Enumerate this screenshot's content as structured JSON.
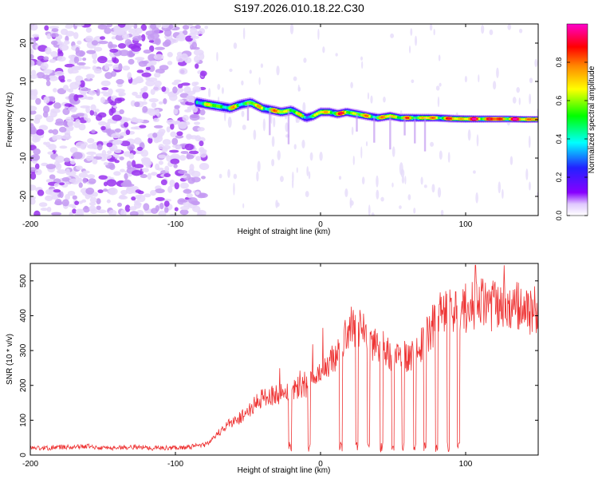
{
  "title": "S197.2026.010.18.22.C30",
  "chart_data": [
    {
      "type": "heatmap",
      "xlabel": "Height of straight line (km)",
      "ylabel": "Frequency (Hz)",
      "xlim": [
        -200,
        150
      ],
      "ylim": [
        -25,
        25
      ],
      "xticks": [
        -200,
        -100,
        0,
        100
      ],
      "yticks": [
        -20,
        -10,
        0,
        10,
        20
      ],
      "noise_region": [
        -200,
        -80
      ],
      "signal_track": {
        "x": [
          -85,
          -78,
          -70,
          -62,
          -55,
          -48,
          -40,
          -33,
          -27,
          -20,
          -15,
          -10,
          -5,
          0,
          6,
          12,
          18,
          25,
          32,
          40,
          48,
          55,
          62,
          70,
          80,
          90,
          100,
          110,
          120,
          130,
          140,
          150
        ],
        "freq": [
          4.5,
          4,
          3.5,
          3,
          4,
          4.5,
          3,
          2.5,
          2,
          2.5,
          1.5,
          0.5,
          1,
          2,
          2,
          1.5,
          2,
          1.5,
          1,
          0.5,
          1,
          0.5,
          0.5,
          0.5,
          0.5,
          0.3,
          0.2,
          0.2,
          0.2,
          0.2,
          0.1,
          0.1
        ],
        "amplitude": [
          0.6,
          0.65,
          0.6,
          0.65,
          0.6,
          0.65,
          0.7,
          0.7,
          0.75,
          0.7,
          0.6,
          0.55,
          0.6,
          0.7,
          0.75,
          0.8,
          0.75,
          0.7,
          0.7,
          0.7,
          0.75,
          0.75,
          0.7,
          0.75,
          0.75,
          0.8,
          0.85,
          0.9,
          0.9,
          0.9,
          0.9,
          0.85
        ]
      },
      "colorbar": {
        "label": "Normalized spectral amplitude",
        "range": [
          0,
          1
        ],
        "ticks": [
          "0.0",
          "0.2",
          "0.4",
          "0.6",
          "0.8"
        ],
        "colors": [
          "#ffffff",
          "#e0c8ff",
          "#8800ff",
          "#2222ff",
          "#00ffff",
          "#00ff00",
          "#ffff00",
          "#ff8800",
          "#ff0000",
          "#ff00cc"
        ]
      }
    },
    {
      "type": "line",
      "xlabel": "Height of straight line (km)",
      "ylabel": "SNR (10 * v/v)",
      "xlim": [
        -200,
        150
      ],
      "ylim": [
        0,
        550
      ],
      "xticks": [
        -200,
        -100,
        0,
        100
      ],
      "yticks": [
        0,
        100,
        200,
        300,
        400,
        500
      ],
      "color": "#ee3333",
      "x": [
        -200,
        -190,
        -180,
        -170,
        -160,
        -150,
        -140,
        -130,
        -120,
        -110,
        -100,
        -90,
        -80,
        -75,
        -70,
        -65,
        -60,
        -55,
        -50,
        -45,
        -40,
        -35,
        -30,
        -25,
        -20,
        -15,
        -10,
        -5,
        0,
        5,
        10,
        15,
        20,
        25,
        30,
        35,
        40,
        45,
        50,
        55,
        60,
        65,
        70,
        75,
        80,
        85,
        90,
        95,
        100,
        105,
        110,
        115,
        120,
        125,
        130,
        135,
        140,
        145,
        150
      ],
      "y": [
        20,
        18,
        22,
        20,
        25,
        18,
        20,
        22,
        20,
        18,
        20,
        22,
        28,
        40,
        65,
        85,
        95,
        110,
        125,
        145,
        165,
        170,
        175,
        180,
        190,
        195,
        200,
        210,
        225,
        260,
        280,
        320,
        380,
        360,
        350,
        330,
        310,
        300,
        280,
        290,
        285,
        300,
        320,
        350,
        390,
        420,
        415,
        405,
        420,
        430,
        440,
        425,
        430,
        420,
        415,
        425,
        420,
        410,
        415
      ],
      "dropouts": [
        -21,
        -8,
        14,
        25,
        33,
        42,
        50,
        57,
        65,
        72,
        80,
        88,
        95
      ]
    }
  ]
}
